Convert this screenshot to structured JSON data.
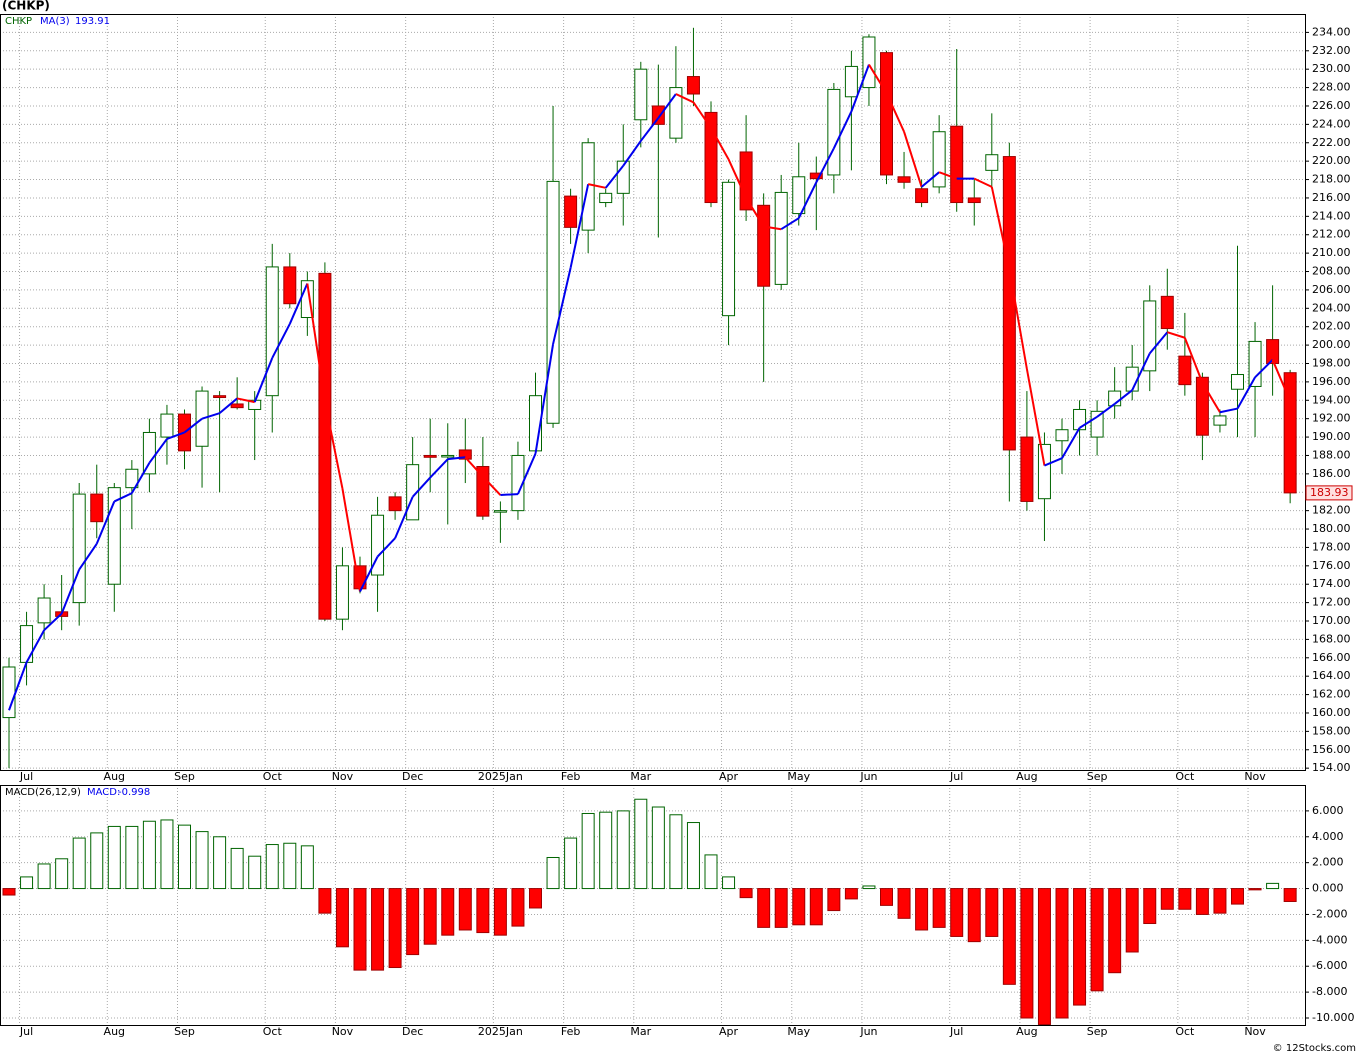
{
  "chart_data": [
    {
      "type": "candlestick",
      "title": "(CHKP)",
      "symbol": "CHKP",
      "categories": [
        null,
        "Jul",
        null,
        null,
        null,
        null,
        "Aug",
        null,
        null,
        null,
        "Sep",
        null,
        null,
        null,
        null,
        "Oct",
        null,
        null,
        null,
        "Nov",
        null,
        null,
        null,
        "Dec",
        null,
        null,
        null,
        null,
        "2025Jan",
        null,
        null,
        null,
        "Feb",
        null,
        null,
        null,
        "Mar",
        null,
        null,
        null,
        null,
        "Apr",
        null,
        null,
        null,
        "May",
        null,
        null,
        null,
        "Jun",
        null,
        null,
        null,
        null,
        "Jul",
        null,
        null,
        null,
        "Aug",
        null,
        null,
        null,
        "Sep",
        null,
        null,
        null,
        null,
        "Oct",
        null,
        null,
        null,
        "Nov",
        null,
        null
      ],
      "open": [
        159.5,
        165.5,
        169.8,
        171,
        172,
        183.8,
        174,
        184.5,
        186,
        190,
        192.5,
        189,
        194.5,
        193.6,
        193,
        194.5,
        208.5,
        203,
        207.8,
        170.2,
        176,
        175,
        183.5,
        181,
        188,
        188,
        188.6,
        186.8,
        182,
        182,
        188.5,
        191.5,
        216.2,
        212.5,
        215.5,
        216.5,
        224.5,
        226,
        222.5,
        229.2,
        225.3,
        203.2,
        221,
        215.2,
        206.6,
        214.3,
        218.7,
        218.5,
        227,
        228,
        231.8,
        218.3,
        217,
        217.2,
        223.8,
        216,
        219,
        220.5,
        190,
        183.3,
        189.6,
        190.8,
        190,
        193.4,
        195,
        197.2,
        205.3,
        198.8,
        196.5,
        191.3,
        195.2,
        195.5,
        200.6,
        197
      ],
      "high": [
        166,
        171,
        174,
        175,
        185,
        187,
        185,
        187.5,
        192,
        193.5,
        193,
        195.5,
        195,
        196.5,
        195,
        211,
        210,
        208,
        209,
        178,
        177,
        183.5,
        184,
        190,
        192,
        191.5,
        192,
        190,
        183,
        189.5,
        197,
        226,
        217,
        222.5,
        217,
        224,
        230.8,
        230.5,
        232.5,
        234.5,
        226.5,
        218,
        225,
        216.5,
        218.5,
        222,
        220.5,
        228.5,
        232,
        233.8,
        232,
        221,
        218,
        225,
        232.2,
        218,
        225.2,
        222,
        195,
        190.5,
        192,
        194,
        194,
        197.6,
        200,
        206.5,
        208.3,
        203.5,
        197,
        193,
        210.8,
        202.5,
        206.5,
        197.3
      ],
      "low": [
        154,
        163,
        168,
        169,
        169.5,
        179,
        171,
        180,
        184,
        187,
        186.5,
        184.5,
        184,
        193,
        187.5,
        190.5,
        204,
        201,
        170,
        169,
        173,
        171,
        181,
        181,
        184,
        180.5,
        185,
        181,
        178.5,
        181,
        188,
        191,
        211,
        210,
        215,
        213,
        221.5,
        211.7,
        222,
        226,
        215,
        200,
        213.5,
        196,
        206,
        213,
        212.5,
        216.5,
        219,
        226,
        217.5,
        217,
        215,
        216.5,
        214.5,
        213,
        217,
        183,
        182,
        178.7,
        186,
        188,
        188,
        192,
        194,
        195,
        199.5,
        194.5,
        187.5,
        190.5,
        190,
        190,
        194.5,
        182.8
      ],
      "close": [
        165,
        169.5,
        172.5,
        170.5,
        183.8,
        180.8,
        184.5,
        186.5,
        190.5,
        192.5,
        188.5,
        195,
        194.3,
        193.2,
        194,
        208.5,
        204.5,
        207,
        170.2,
        176,
        173.5,
        181.5,
        182,
        187,
        187.8,
        188,
        187.6,
        181.4,
        182,
        188,
        194.5,
        217.8,
        212.8,
        222,
        216.5,
        220,
        230,
        224,
        228,
        227.3,
        215.5,
        217.7,
        214.7,
        206.4,
        216.6,
        218.3,
        218.1,
        227.8,
        230.3,
        233.5,
        218.5,
        217.7,
        215.5,
        223.2,
        215.5,
        215.5,
        220.7,
        188.6,
        183,
        189.2,
        190.8,
        193,
        192.8,
        195,
        197.6,
        204.8,
        201.8,
        195.7,
        190.2,
        192.3,
        196.8,
        200.4,
        198,
        183.93
      ],
      "up_color": "#006400",
      "down_color": "#ff0000",
      "wick_color": "#006400",
      "ma": {
        "name": "MA(3)",
        "up_color": "#0000ee",
        "down_color": "#ff0000",
        "values": [
          160.3,
          165.5,
          169.0,
          170.8,
          175.6,
          178.4,
          183.0,
          183.9,
          187.2,
          189.8,
          190.5,
          192.0,
          192.6,
          194.2,
          193.8,
          198.6,
          202.3,
          206.7,
          193.9,
          184.4,
          173.2,
          177.0,
          179.0,
          183.5,
          185.6,
          187.6,
          187.8,
          185.7,
          183.7,
          183.8,
          188.2,
          200.1,
          208.4,
          217.5,
          217.1,
          219.5,
          222.2,
          224.7,
          227.3,
          226.4,
          223.6,
          220.2,
          216.0,
          212.9,
          212.6,
          213.8,
          217.7,
          221.4,
          225.4,
          230.5,
          227.4,
          223.2,
          217.2,
          218.8,
          218.1,
          218.1,
          217.2,
          208.3,
          197.4,
          186.9,
          187.7,
          191.0,
          192.2,
          193.6,
          195.1,
          199.1,
          201.4,
          200.8,
          195.9,
          192.7,
          193.1,
          196.5,
          198.4,
          193.91
        ]
      },
      "ylim": [
        153.8,
        236.0
      ],
      "yticks": [
        {
          "value": 154,
          "label": "154.00"
        },
        {
          "value": 156,
          "label": "156.00"
        },
        {
          "value": 158,
          "label": "158.00"
        },
        {
          "value": 160,
          "label": "160.00"
        },
        {
          "value": 162,
          "label": "162.00"
        },
        {
          "value": 164,
          "label": "164.00"
        },
        {
          "value": 166,
          "label": "166.00"
        },
        {
          "value": 168,
          "label": "168.00"
        },
        {
          "value": 170,
          "label": "170.00"
        },
        {
          "value": 172,
          "label": "172.00"
        },
        {
          "value": 174,
          "label": "174.00"
        },
        {
          "value": 176,
          "label": "176.00"
        },
        {
          "value": 178,
          "label": "178.00"
        },
        {
          "value": 180,
          "label": "180.00"
        },
        {
          "value": 182,
          "label": "182.00"
        },
        {
          "value": 184,
          "label": "184.00"
        },
        {
          "value": 186,
          "label": "186.00"
        },
        {
          "value": 188,
          "label": "188.00"
        },
        {
          "value": 190,
          "label": "190.00"
        },
        {
          "value": 192,
          "label": "192.00"
        },
        {
          "value": 194,
          "label": "194.00"
        },
        {
          "value": 196,
          "label": "196.00"
        },
        {
          "value": 198,
          "label": "198.00"
        },
        {
          "value": 200,
          "label": "200.00"
        },
        {
          "value": 202,
          "label": "202.00"
        },
        {
          "value": 204,
          "label": "204.00"
        },
        {
          "value": 206,
          "label": "206.00"
        },
        {
          "value": 208,
          "label": "208.00"
        },
        {
          "value": 210,
          "label": "210.00"
        },
        {
          "value": 212,
          "label": "212.00"
        },
        {
          "value": 214,
          "label": "214.00"
        },
        {
          "value": 216,
          "label": "216.00"
        },
        {
          "value": 218,
          "label": "218.00"
        },
        {
          "value": 220,
          "label": "220.00"
        },
        {
          "value": 222,
          "label": "222.00"
        },
        {
          "value": 224,
          "label": "224.00"
        },
        {
          "value": 226,
          "label": "226.00"
        },
        {
          "value": 228,
          "label": "228.00"
        },
        {
          "value": 230,
          "label": "230.00"
        },
        {
          "value": 232,
          "label": "232.00"
        },
        {
          "value": 234,
          "label": "234.00"
        }
      ],
      "grid": true
    },
    {
      "type": "bar",
      "title": "MACD(26,12,9)",
      "value_label": "MACD:",
      "values": [
        -0.5,
        0.9,
        1.9,
        2.3,
        3.9,
        4.3,
        4.8,
        4.8,
        5.2,
        5.3,
        4.9,
        4.4,
        4.0,
        3.1,
        2.5,
        3.4,
        3.5,
        3.3,
        -1.9,
        -4.5,
        -6.3,
        -6.3,
        -6.1,
        -5.1,
        -4.3,
        -3.6,
        -3.2,
        -3.4,
        -3.6,
        -2.9,
        -1.5,
        2.4,
        3.9,
        5.8,
        5.9,
        6.0,
        6.9,
        6.3,
        5.7,
        5.1,
        2.6,
        0.9,
        -0.7,
        -3.0,
        -3.0,
        -2.8,
        -2.8,
        -1.7,
        -0.8,
        0.2,
        -1.3,
        -2.3,
        -3.2,
        -3.0,
        -3.7,
        -4.1,
        -3.7,
        -7.4,
        -10.0,
        -10.5,
        -10.0,
        -9.0,
        -7.9,
        -6.5,
        -4.9,
        -2.7,
        -1.6,
        -1.6,
        -2.0,
        -1.9,
        -1.2,
        -0.1,
        0.4,
        -0.998
      ],
      "categories": [
        null,
        "Jul",
        null,
        null,
        null,
        null,
        "Aug",
        null,
        null,
        null,
        "Sep",
        null,
        null,
        null,
        null,
        "Oct",
        null,
        null,
        null,
        "Nov",
        null,
        null,
        null,
        "Dec",
        null,
        null,
        null,
        null,
        "2025Jan",
        null,
        null,
        null,
        "Feb",
        null,
        null,
        null,
        "Mar",
        null,
        null,
        null,
        null,
        "Apr",
        null,
        null,
        null,
        "May",
        null,
        null,
        null,
        "Jun",
        null,
        null,
        null,
        null,
        "Jul",
        null,
        null,
        null,
        "Aug",
        null,
        null,
        null,
        "Sep",
        null,
        null,
        null,
        null,
        "Oct",
        null,
        null,
        null,
        "Nov",
        null,
        null
      ],
      "up_color": "#006400",
      "down_color": "#ff0000",
      "ylim": [
        -10.54,
        8.0
      ],
      "yticks": [
        {
          "value": 6,
          "label": "6.000"
        },
        {
          "value": 4,
          "label": "4.000"
        },
        {
          "value": 2,
          "label": "2.000"
        },
        {
          "value": 0,
          "label": "0.000"
        },
        {
          "value": -2,
          "label": "-2.000"
        },
        {
          "value": -4,
          "label": "-4.000"
        },
        {
          "value": -6,
          "label": "-6.000"
        },
        {
          "value": -8,
          "label": "-8.000"
        },
        {
          "value": -10,
          "label": "-10.000"
        }
      ],
      "grid": true
    }
  ],
  "source": "© 12Stocks.com"
}
